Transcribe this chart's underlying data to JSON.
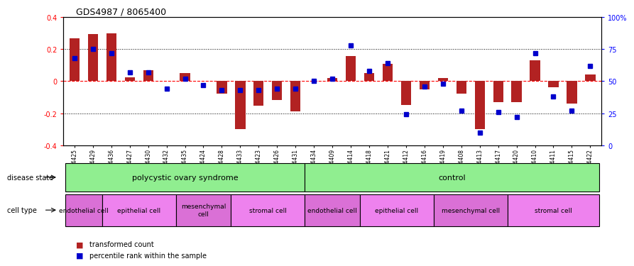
{
  "title": "GDS4987 / 8065400",
  "samples": [
    "GSM1174425",
    "GSM1174429",
    "GSM1174436",
    "GSM1174427",
    "GSM1174430",
    "GSM1174432",
    "GSM1174435",
    "GSM1174424",
    "GSM1174428",
    "GSM1174433",
    "GSM1174423",
    "GSM1174426",
    "GSM1174431",
    "GSM1174434",
    "GSM1174409",
    "GSM1174414",
    "GSM1174418",
    "GSM1174421",
    "GSM1174412",
    "GSM1174416",
    "GSM1174419",
    "GSM1174408",
    "GSM1174413",
    "GSM1174417",
    "GSM1174420",
    "GSM1174410",
    "GSM1174411",
    "GSM1174415",
    "GSM1174422"
  ],
  "transformed_count": [
    0.265,
    0.295,
    0.3,
    0.025,
    0.07,
    0.0,
    0.05,
    0.0,
    -0.08,
    -0.3,
    -0.155,
    -0.12,
    -0.19,
    0.0,
    0.02,
    0.155,
    0.05,
    0.11,
    -0.15,
    -0.05,
    0.02,
    -0.08,
    -0.3,
    -0.13,
    -0.13,
    0.13,
    -0.04,
    -0.14,
    0.04
  ],
  "percentile_rank": [
    68,
    75,
    72,
    57,
    57,
    44,
    52,
    47,
    43,
    43,
    43,
    44,
    44,
    50,
    52,
    78,
    58,
    64,
    24,
    46,
    48,
    27,
    10,
    26,
    22,
    72,
    38,
    27,
    62
  ],
  "disease_state_groups": [
    {
      "label": "polycystic ovary syndrome",
      "start": 0,
      "end": 13,
      "color": "#90EE90"
    },
    {
      "label": "control",
      "start": 13,
      "end": 29,
      "color": "#90EE90"
    }
  ],
  "cell_type_groups": [
    {
      "label": "endothelial cell",
      "start": 0,
      "end": 2,
      "color": "#DA70D6"
    },
    {
      "label": "epithelial cell",
      "start": 2,
      "end": 6,
      "color": "#EE82EE"
    },
    {
      "label": "mesenchymal\ncell",
      "start": 6,
      "end": 9,
      "color": "#DA70D6"
    },
    {
      "label": "stromal cell",
      "start": 9,
      "end": 13,
      "color": "#EE82EE"
    },
    {
      "label": "endothelial cell",
      "start": 13,
      "end": 16,
      "color": "#DA70D6"
    },
    {
      "label": "epithelial cell",
      "start": 16,
      "end": 20,
      "color": "#EE82EE"
    },
    {
      "label": "mesenchymal cell",
      "start": 20,
      "end": 24,
      "color": "#DA70D6"
    },
    {
      "label": "stromal cell",
      "start": 24,
      "end": 29,
      "color": "#EE82EE"
    }
  ],
  "bar_color": "#B22222",
  "dot_color": "#0000CC",
  "left_ylim": [
    -0.4,
    0.4
  ],
  "right_ylim": [
    0,
    100
  ],
  "left_yticks": [
    -0.4,
    -0.2,
    0.0,
    0.2,
    0.4
  ],
  "right_yticks": [
    0,
    25,
    50,
    75,
    100
  ],
  "right_yticklabels": [
    "0",
    "25",
    "50",
    "75",
    "100%"
  ],
  "dotted_lines": [
    -0.2,
    0.2
  ],
  "background_color": "#ffffff",
  "disease_state_label": "disease state",
  "cell_type_label": "cell type"
}
